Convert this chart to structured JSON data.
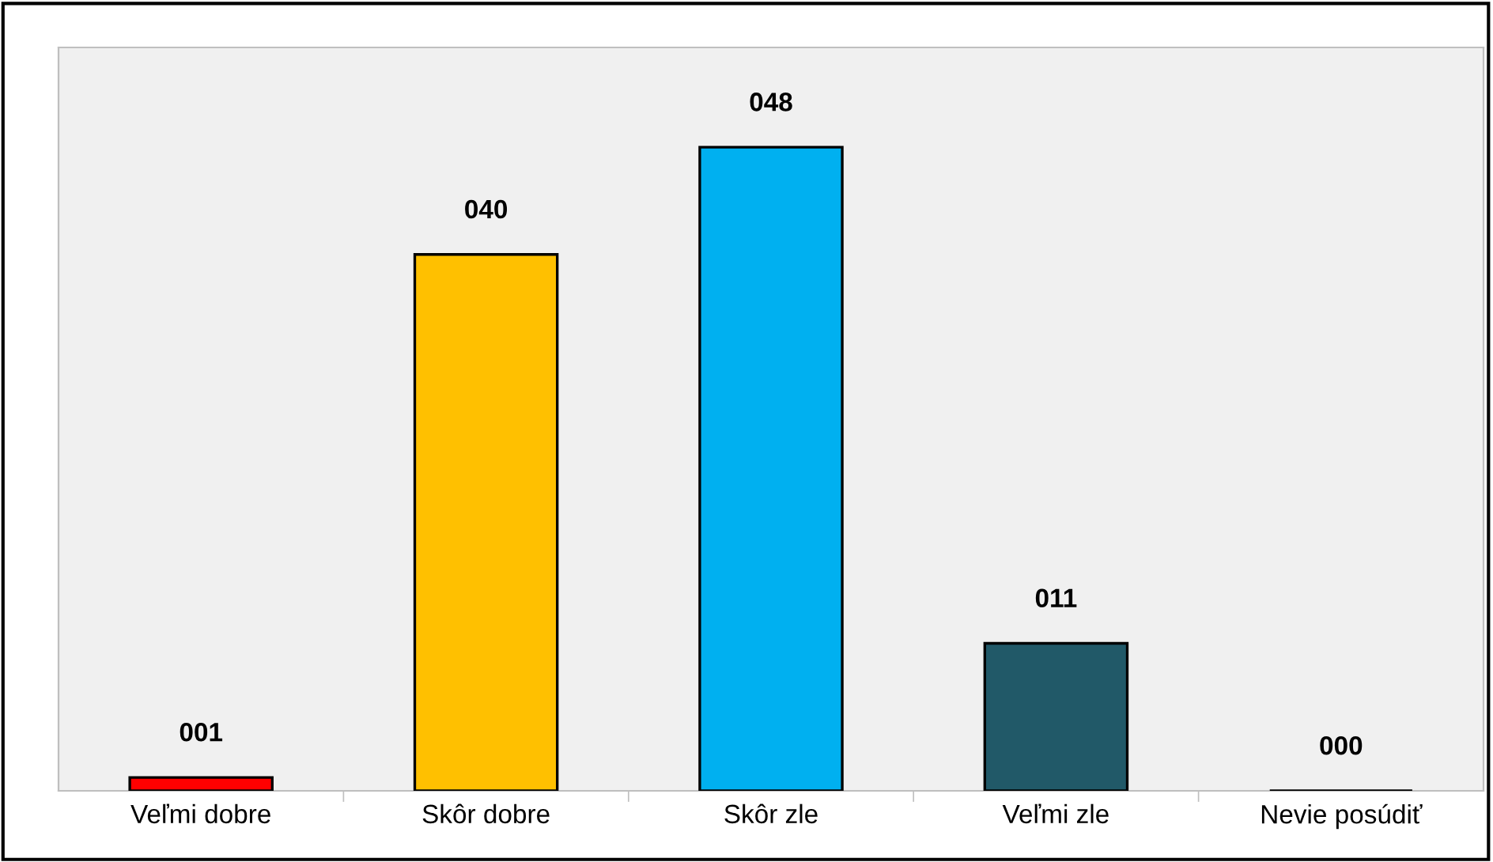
{
  "chart_data": {
    "type": "bar",
    "categories": [
      "Veľmi dobre",
      "Skôr dobre",
      "Skôr zle",
      "Veľmi zle",
      "Nevie posúdiť"
    ],
    "values": [
      1,
      40,
      48,
      11,
      0
    ],
    "value_labels": [
      "001",
      "040",
      "048",
      "011",
      "000"
    ],
    "colors": [
      "#ff0000",
      "#ffc000",
      "#00b0f0",
      "#215968",
      "#000000"
    ],
    "grid": false,
    "legend": false
  }
}
